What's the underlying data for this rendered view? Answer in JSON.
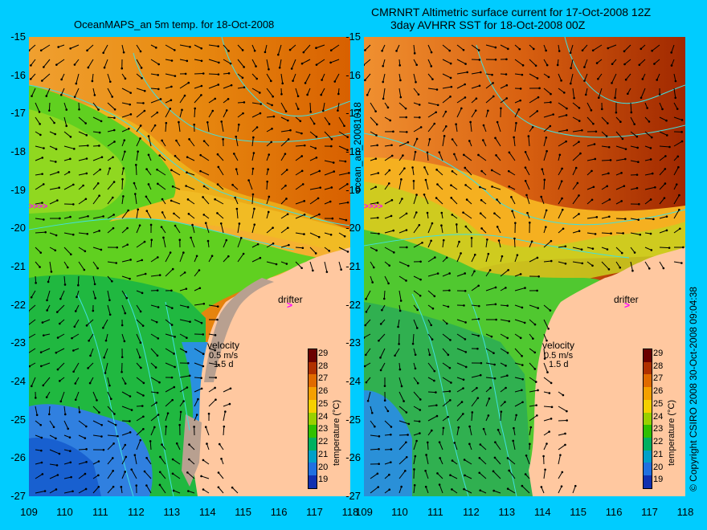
{
  "titles": {
    "left": "OceanMAPS_an 5m temp. for 18-Oct-2008",
    "right_line1": "CMRNRT Altimetric surface current for 17-Oct-2008 12Z",
    "right_line2": "3day AVHRR SST for 18-Oct-2008 00Z"
  },
  "axes": {
    "y_ticks": [
      "-15",
      "-16",
      "-17",
      "-18",
      "-19",
      "-20",
      "-21",
      "-22",
      "-23",
      "-24",
      "-25",
      "-26",
      "-27"
    ],
    "x_ticks": [
      "109",
      "110",
      "111",
      "112",
      "113",
      "114",
      "115",
      "116",
      "117",
      "118"
    ]
  },
  "side_labels": {
    "date_code": "ocean_an_20081018",
    "copyright": "© Copyright CSIRO 2008   30-Oct-2008 09:04:38"
  },
  "annotations": {
    "drifter": "drifter",
    "velocity": "velocity",
    "speed": "0.5 m/s",
    "duration": "1.5 d"
  },
  "colorbar": {
    "title": "temperature (°C)",
    "ticks": [
      "29",
      "28",
      "27",
      "26",
      "25",
      "24",
      "23",
      "22",
      "21",
      "20",
      "19"
    ],
    "colors": [
      "#6b0000",
      "#b03000",
      "#e06a00",
      "#f5a000",
      "#f5d000",
      "#9ad000",
      "#30c000",
      "#00b060",
      "#00a0c8",
      "#2070e0",
      "#1030b0"
    ]
  },
  "colors": {
    "background": "#00ccff",
    "land": "#ffc8a0",
    "contour": "#40e0e0",
    "drifter_marker": "#ff00ff"
  }
}
